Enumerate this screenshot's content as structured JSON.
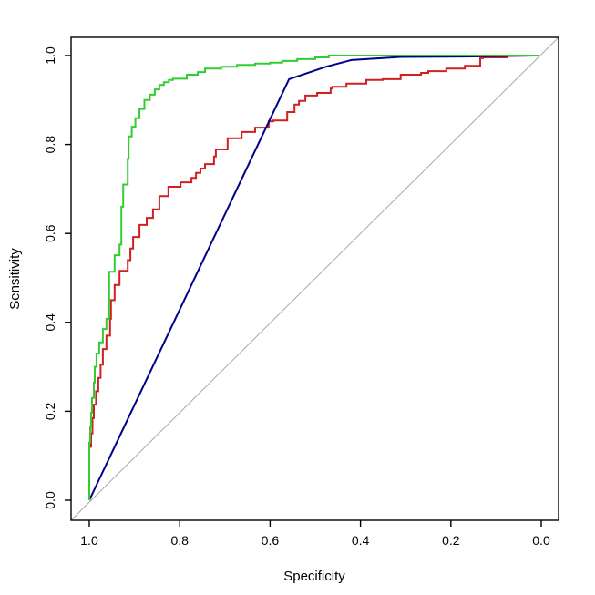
{
  "page": {
    "background": "#ffffff",
    "description": "R base-graphics ROC curve plot with three classifiers and a diagonal chance line"
  },
  "chart_data": {
    "type": "line",
    "title": "",
    "xlabel": "Specificity",
    "ylabel": "Sensitivity",
    "xlim": [
      1.0,
      0.0
    ],
    "ylim": [
      0.0,
      1.0
    ],
    "x_axis_reversed": true,
    "grid": false,
    "legend": false,
    "frame_box": true,
    "axis_color": "#000000",
    "x_ticks": [
      "1.0",
      "0.8",
      "0.6",
      "0.4",
      "0.2",
      "0.0"
    ],
    "y_ticks": [
      "0.0",
      "0.2",
      "0.4",
      "0.6",
      "0.8",
      "1.0"
    ],
    "diagonal_reference": {
      "present": true,
      "color": "#a8a8a8",
      "description": "gray chance line from lower-left box corner to upper-right box corner"
    },
    "series": [
      {
        "name": "roc-curve-red",
        "color": "#d02020",
        "line_width": 2,
        "style": "step",
        "points": [
          [
            1.0,
            0.0
          ],
          [
            1.0,
            0.09
          ],
          [
            0.996,
            0.12
          ],
          [
            0.993,
            0.15
          ],
          [
            0.99,
            0.185
          ],
          [
            0.985,
            0.215
          ],
          [
            0.98,
            0.245
          ],
          [
            0.975,
            0.275
          ],
          [
            0.97,
            0.305
          ],
          [
            0.962,
            0.34
          ],
          [
            0.954,
            0.37
          ],
          [
            0.952,
            0.408
          ],
          [
            0.944,
            0.45
          ],
          [
            0.933,
            0.484
          ],
          [
            0.915,
            0.516
          ],
          [
            0.909,
            0.54
          ],
          [
            0.903,
            0.566
          ],
          [
            0.889,
            0.592
          ],
          [
            0.873,
            0.619
          ],
          [
            0.859,
            0.635
          ],
          [
            0.845,
            0.654
          ],
          [
            0.825,
            0.684
          ],
          [
            0.798,
            0.705
          ],
          [
            0.774,
            0.715
          ],
          [
            0.764,
            0.725
          ],
          [
            0.754,
            0.736
          ],
          [
            0.744,
            0.746
          ],
          [
            0.724,
            0.756
          ],
          [
            0.72,
            0.773
          ],
          [
            0.694,
            0.789
          ],
          [
            0.663,
            0.814
          ],
          [
            0.633,
            0.828
          ],
          [
            0.603,
            0.838
          ],
          [
            0.593,
            0.852
          ],
          [
            0.562,
            0.854
          ],
          [
            0.546,
            0.873
          ],
          [
            0.536,
            0.89
          ],
          [
            0.522,
            0.898
          ],
          [
            0.496,
            0.91
          ],
          [
            0.466,
            0.916
          ],
          [
            0.462,
            0.926
          ],
          [
            0.431,
            0.93
          ],
          [
            0.387,
            0.937
          ],
          [
            0.351,
            0.945
          ],
          [
            0.311,
            0.947
          ],
          [
            0.266,
            0.957
          ],
          [
            0.25,
            0.961
          ],
          [
            0.21,
            0.965
          ],
          [
            0.169,
            0.971
          ],
          [
            0.135,
            0.977
          ],
          [
            0.129,
            0.994
          ],
          [
            0.075,
            0.996
          ],
          [
            0.069,
            1.0
          ],
          [
            0.005,
            1.0
          ]
        ]
      },
      {
        "name": "roc-curve-blue",
        "color": "#00008b",
        "line_width": 2,
        "style": "linear",
        "points": [
          [
            1.0,
            0.0
          ],
          [
            0.558,
            0.947
          ],
          [
            0.476,
            0.975
          ],
          [
            0.42,
            0.99
          ],
          [
            0.31,
            0.997
          ],
          [
            0.15,
            0.998
          ],
          [
            0.01,
            1.0
          ]
        ]
      },
      {
        "name": "roc-curve-green",
        "color": "#33cc33",
        "line_width": 2,
        "style": "step",
        "points": [
          [
            1.0,
            0.0
          ],
          [
            1.0,
            0.095
          ],
          [
            0.998,
            0.13
          ],
          [
            0.996,
            0.165
          ],
          [
            0.994,
            0.197
          ],
          [
            0.99,
            0.23
          ],
          [
            0.988,
            0.265
          ],
          [
            0.984,
            0.3
          ],
          [
            0.978,
            0.33
          ],
          [
            0.97,
            0.355
          ],
          [
            0.962,
            0.385
          ],
          [
            0.956,
            0.408
          ],
          [
            0.956,
            0.484
          ],
          [
            0.944,
            0.514
          ],
          [
            0.933,
            0.551
          ],
          [
            0.929,
            0.575
          ],
          [
            0.929,
            0.627
          ],
          [
            0.925,
            0.66
          ],
          [
            0.925,
            0.684
          ],
          [
            0.915,
            0.71
          ],
          [
            0.915,
            0.736
          ],
          [
            0.913,
            0.768
          ],
          [
            0.913,
            0.791
          ],
          [
            0.906,
            0.818
          ],
          [
            0.898,
            0.84
          ],
          [
            0.889,
            0.859
          ],
          [
            0.878,
            0.88
          ],
          [
            0.866,
            0.9
          ],
          [
            0.855,
            0.912
          ],
          [
            0.845,
            0.924
          ],
          [
            0.835,
            0.934
          ],
          [
            0.824,
            0.94
          ],
          [
            0.815,
            0.945
          ],
          [
            0.784,
            0.948
          ],
          [
            0.76,
            0.957
          ],
          [
            0.744,
            0.963
          ],
          [
            0.708,
            0.971
          ],
          [
            0.673,
            0.975
          ],
          [
            0.633,
            0.979
          ],
          [
            0.6,
            0.982
          ],
          [
            0.573,
            0.984
          ],
          [
            0.54,
            0.988
          ],
          [
            0.5,
            0.992
          ],
          [
            0.47,
            0.996
          ],
          [
            0.45,
            1.0
          ],
          [
            0.005,
            1.0
          ]
        ]
      }
    ]
  }
}
